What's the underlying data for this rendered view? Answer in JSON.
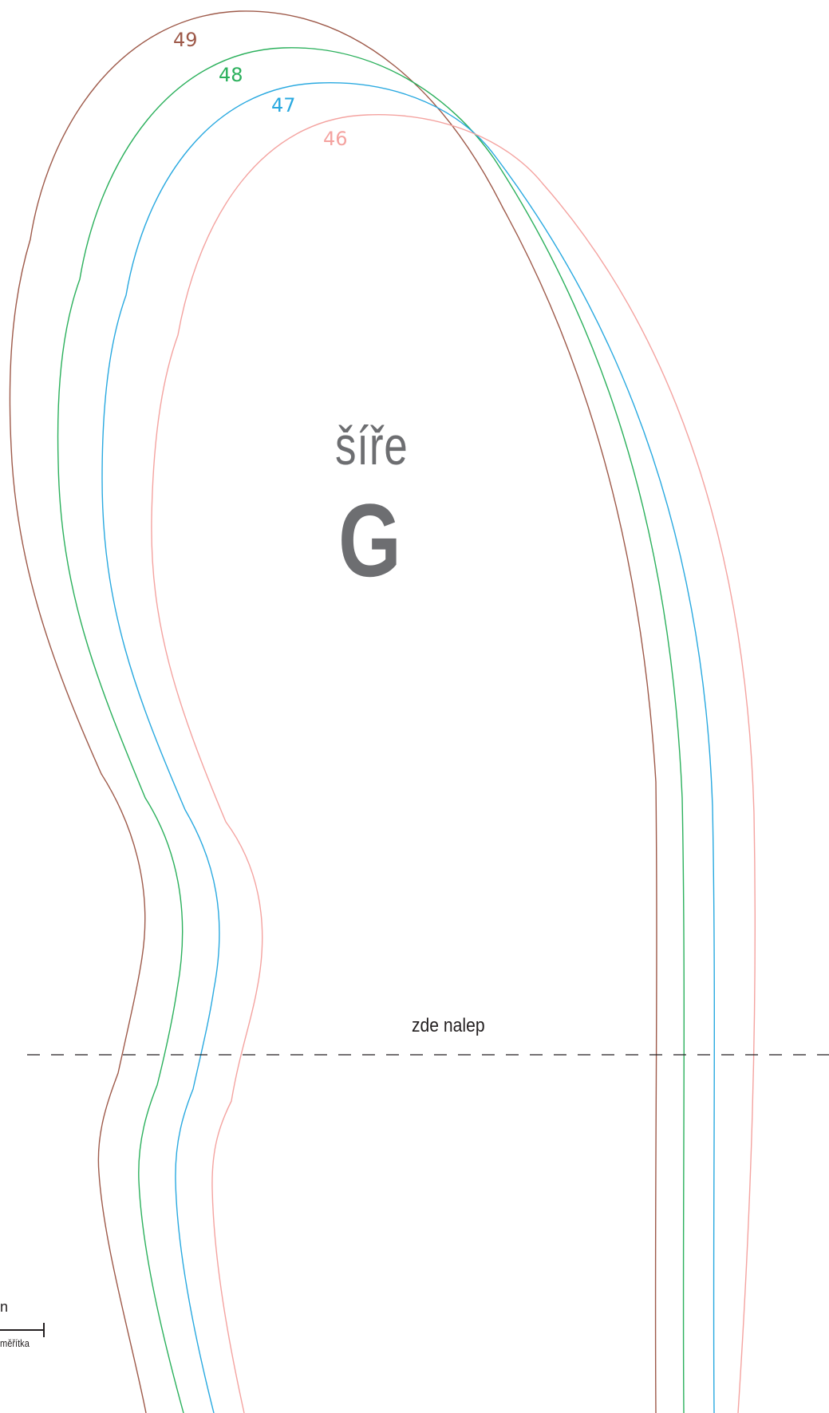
{
  "sizes": [
    {
      "label": "49",
      "color": "#9e5a4a"
    },
    {
      "label": "48",
      "color": "#2bb05c"
    },
    {
      "label": "47",
      "color": "#29a9e0"
    },
    {
      "label": "46",
      "color": "#f4a3a0"
    }
  ],
  "width": {
    "word": "šíře",
    "letter": "G"
  },
  "glue_line": {
    "label": "zde nalep",
    "style": "dashed"
  },
  "scale": {
    "unit": "n",
    "caption": "měřítka"
  }
}
